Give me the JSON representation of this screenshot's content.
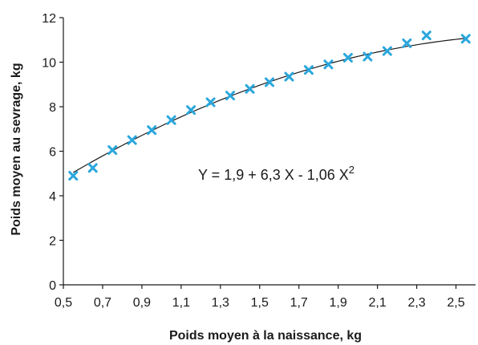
{
  "chart_data": {
    "type": "scatter",
    "xlabel": "Poids moyen à la naissance, kg",
    "ylabel": "Poids moyen au sevrage, kg",
    "xlim": [
      0.5,
      2.6
    ],
    "ylim": [
      0,
      12
    ],
    "xticks": [
      "0,5",
      "0,7",
      "0,9",
      "1,1",
      "1,3",
      "1,5",
      "1,7",
      "1,9",
      "2,1",
      "2,3",
      "2,5"
    ],
    "yticks": [
      "0",
      "2",
      "4",
      "6",
      "8",
      "10",
      "12"
    ],
    "points": [
      {
        "x": 0.55,
        "y": 4.9
      },
      {
        "x": 0.65,
        "y": 5.25
      },
      {
        "x": 0.75,
        "y": 6.05
      },
      {
        "x": 0.85,
        "y": 6.5
      },
      {
        "x": 0.95,
        "y": 6.95
      },
      {
        "x": 1.05,
        "y": 7.4
      },
      {
        "x": 1.15,
        "y": 7.85
      },
      {
        "x": 1.25,
        "y": 8.2
      },
      {
        "x": 1.35,
        "y": 8.5
      },
      {
        "x": 1.45,
        "y": 8.8
      },
      {
        "x": 1.55,
        "y": 9.1
      },
      {
        "x": 1.65,
        "y": 9.35
      },
      {
        "x": 1.75,
        "y": 9.65
      },
      {
        "x": 1.85,
        "y": 9.9
      },
      {
        "x": 1.95,
        "y": 10.2
      },
      {
        "x": 2.05,
        "y": 10.25
      },
      {
        "x": 2.15,
        "y": 10.5
      },
      {
        "x": 2.25,
        "y": 10.85
      },
      {
        "x": 2.35,
        "y": 11.2
      },
      {
        "x": 2.55,
        "y": 11.05
      }
    ],
    "fit": {
      "intercept": 1.9,
      "linear": 6.3,
      "quadratic": -1.06
    },
    "equation": {
      "main": "Y = 1,9 + 6,3 X - 1,06 X",
      "superscript": "2"
    },
    "marker_color": "#2aa7dd",
    "curve_color": "#1a1a1a",
    "grid": false
  }
}
